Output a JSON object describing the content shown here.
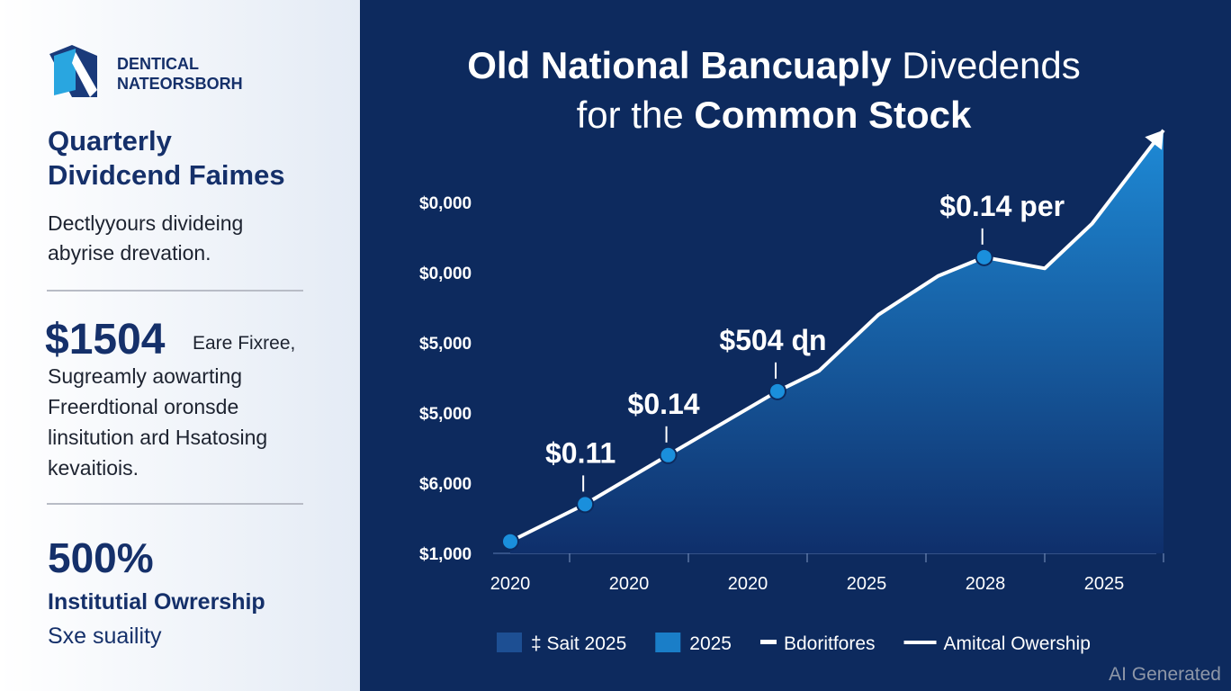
{
  "sidebar": {
    "logo": [
      "DENTICAL",
      "NATEORSBORH"
    ],
    "heading": [
      "Quarterly",
      "Dividcend Faimes"
    ],
    "intro": [
      "Dectlyyours divideing",
      "abyrise drevation."
    ],
    "stat1": {
      "value": "$1504",
      "suffix": "Eare Fixree,",
      "text": [
        "Sugreamly aowarting",
        "Freerdtional oronsde",
        "linsitution ard Hsatosing",
        "kevaitiois."
      ]
    },
    "stat2": {
      "value": "500%",
      "text": [
        "Institutial Owrership",
        "Sxe suaility"
      ]
    }
  },
  "chart_data": {
    "type": "area",
    "title": [
      [
        {
          "text": "Old National Bancuaply",
          "bold": true
        },
        {
          "text": " Divedends",
          "bold": false
        }
      ],
      [
        {
          "text": "for the ",
          "bold": false
        },
        {
          "text": "Common Stock",
          "bold": true
        }
      ]
    ],
    "xlim": [
      -0.2,
      5.4
    ],
    "xticks": [
      {
        "value": 0,
        "label": "2020"
      },
      {
        "value": 1,
        "label": "2020"
      },
      {
        "value": 2,
        "label": "2020"
      },
      {
        "value": 3,
        "label": "2025"
      },
      {
        "value": 4,
        "label": "2028"
      },
      {
        "value": 5,
        "label": "2025"
      }
    ],
    "ylim": [
      0,
      6.1
    ],
    "yticks": [
      {
        "value": 0,
        "label": "$1,000"
      },
      {
        "value": 1,
        "label": "$6,000"
      },
      {
        "value": 2,
        "label": "$5,000"
      },
      {
        "value": 3,
        "label": "$5,000"
      },
      {
        "value": 4,
        "label": "$0,000"
      },
      {
        "value": 5,
        "label": "$0,000"
      }
    ],
    "series": [
      {
        "name": "Amitcal Owership",
        "color": "#ffffff",
        "x": [
          0,
          0.63,
          1.33,
          2.25,
          2.6,
          3.1,
          3.6,
          3.99,
          4.5,
          4.9,
          5.5
        ],
        "values": [
          0.17,
          0.7,
          1.4,
          2.31,
          2.6,
          3.4,
          3.95,
          4.22,
          4.06,
          4.7,
          6.03
        ]
      }
    ],
    "points": {
      "color": "#1a8fdc",
      "x": [
        0,
        0.63,
        1.33,
        2.25,
        3.99
      ],
      "values": [
        0.17,
        0.7,
        1.4,
        2.31,
        4.22
      ],
      "labels": [
        null,
        "$0.11",
        "$0.14",
        "$504 ɖn",
        "$0.14 per"
      ]
    },
    "legend": [
      {
        "name": "‡ Sait 2025",
        "color": "#1d4f93",
        "kind": "square"
      },
      {
        "name": "2025",
        "color": "#1a7ec8",
        "kind": "square"
      },
      {
        "name": "Bdoritfores",
        "color": "#ffffff",
        "kind": "dash"
      },
      {
        "name": "Amitcal Owership",
        "color": "#ffffff",
        "kind": "line"
      }
    ]
  },
  "watermark": "AI Generated"
}
